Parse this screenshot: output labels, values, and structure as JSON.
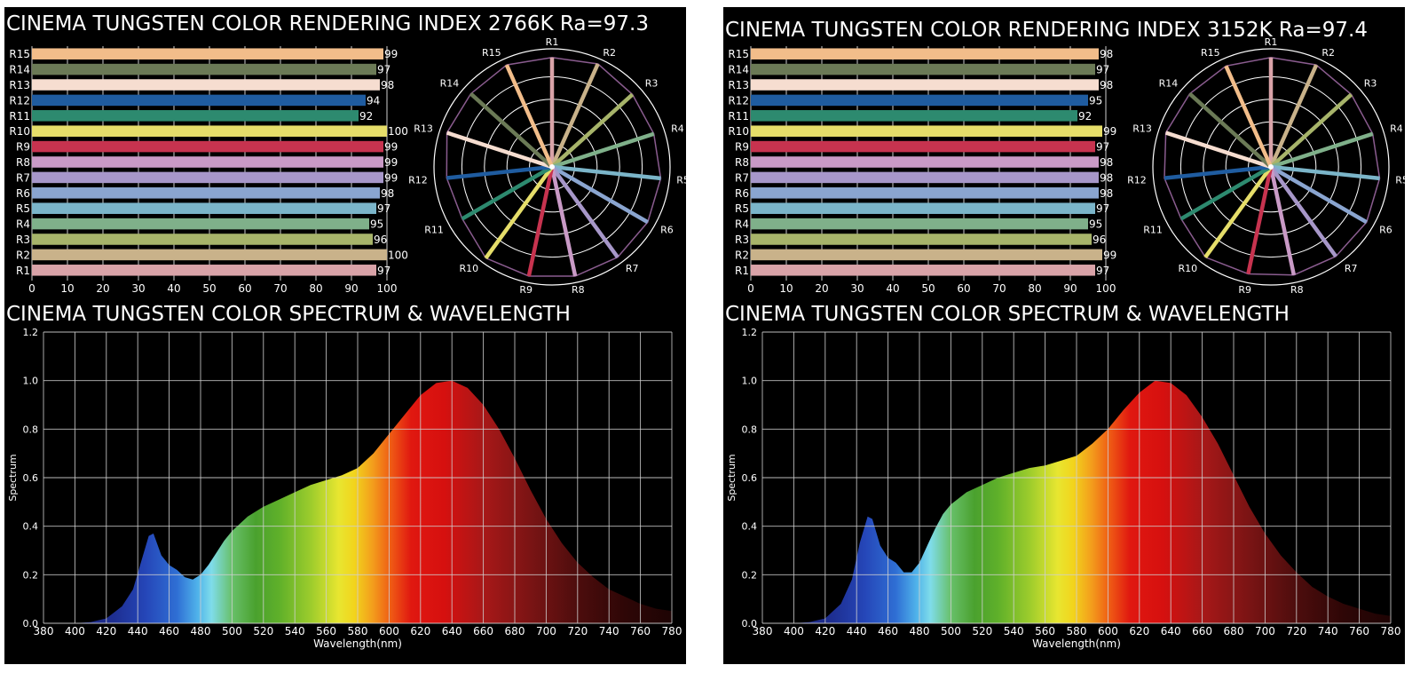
{
  "charts": [
    {
      "cri_title": "CINEMA TUNGSTEN COLOR RENDERING INDEX 2766K Ra=97.3",
      "spectrum_title": "CINEMA TUNGSTEN COLOR SPECTRUM & WAVELENGTH",
      "cct": "2766K",
      "ra": 97.3
    },
    {
      "cri_title": "CINEMA TUNGSTEN COLOR RENDERING INDEX 3152K  Ra=97.4",
      "spectrum_title": "CINEMA TUNGSTEN COLOR SPECTRUM & WAVELENGTH",
      "cct": "3152K",
      "ra": 97.4
    }
  ],
  "chart_data": [
    {
      "type": "bar",
      "orientation": "horizontal",
      "title": "CINEMA TUNGSTEN COLOR RENDERING INDEX 2766K Ra=97.3",
      "categories": [
        "R1",
        "R2",
        "R3",
        "R4",
        "R5",
        "R6",
        "R7",
        "R8",
        "R9",
        "R10",
        "R11",
        "R12",
        "R13",
        "R14",
        "R15"
      ],
      "values": [
        97,
        100,
        96,
        95,
        97,
        98,
        99,
        99,
        99,
        100,
        92,
        94,
        98,
        97,
        99
      ],
      "xlim": [
        0,
        100
      ],
      "xticks": [
        0,
        10,
        20,
        30,
        40,
        50,
        60,
        70,
        80,
        90,
        100
      ],
      "grid": true
    },
    {
      "type": "radar",
      "categories": [
        "R1",
        "R2",
        "R3",
        "R4",
        "R5",
        "R6",
        "R7",
        "R8",
        "R9",
        "R10",
        "R11",
        "R12",
        "R13",
        "R14",
        "R15"
      ],
      "values": [
        97,
        100,
        96,
        95,
        97,
        98,
        99,
        99,
        99,
        100,
        92,
        94,
        98,
        97,
        99
      ],
      "range": [
        0,
        100
      ]
    },
    {
      "type": "area",
      "title": "CINEMA TUNGSTEN COLOR SPECTRUM & WAVELENGTH",
      "xlabel": "Wavelength(nm)",
      "ylabel": "Spectrum",
      "xlim": [
        380,
        780
      ],
      "ylim": [
        0,
        1.2
      ],
      "xticks": [
        380,
        400,
        420,
        440,
        460,
        480,
        500,
        520,
        540,
        560,
        580,
        600,
        620,
        640,
        660,
        680,
        700,
        720,
        740,
        760,
        780
      ],
      "yticks": [
        "0.0",
        "0.2",
        "0.4",
        "0.6",
        "0.8",
        "1.0",
        "1.2"
      ],
      "x": [
        380,
        400,
        410,
        420,
        430,
        437,
        442,
        447,
        450,
        455,
        460,
        465,
        470,
        475,
        480,
        485,
        490,
        495,
        500,
        510,
        520,
        530,
        540,
        550,
        560,
        570,
        580,
        590,
        600,
        610,
        620,
        630,
        640,
        650,
        660,
        670,
        680,
        690,
        700,
        710,
        720,
        730,
        740,
        750,
        760,
        770,
        780
      ],
      "values": [
        0.0,
        0.0,
        0.005,
        0.02,
        0.07,
        0.14,
        0.25,
        0.36,
        0.37,
        0.28,
        0.24,
        0.22,
        0.19,
        0.18,
        0.2,
        0.24,
        0.29,
        0.34,
        0.38,
        0.44,
        0.48,
        0.51,
        0.54,
        0.57,
        0.59,
        0.61,
        0.64,
        0.7,
        0.78,
        0.86,
        0.94,
        0.99,
        1.0,
        0.97,
        0.9,
        0.8,
        0.68,
        0.55,
        0.43,
        0.33,
        0.25,
        0.19,
        0.14,
        0.11,
        0.08,
        0.06,
        0.05
      ],
      "grid": true
    },
    {
      "type": "bar",
      "orientation": "horizontal",
      "title": "CINEMA TUNGSTEN COLOR RENDERING INDEX 3152K  Ra=97.4",
      "categories": [
        "R1",
        "R2",
        "R3",
        "R4",
        "R5",
        "R6",
        "R7",
        "R8",
        "R9",
        "R10",
        "R11",
        "R12",
        "R13",
        "R14",
        "R15"
      ],
      "values": [
        97,
        99,
        96,
        95,
        97,
        98,
        98,
        98,
        97,
        99,
        92,
        95,
        98,
        97,
        98
      ],
      "xlim": [
        0,
        100
      ],
      "xticks": [
        0,
        10,
        20,
        30,
        40,
        50,
        60,
        70,
        80,
        90,
        100
      ],
      "grid": true
    },
    {
      "type": "radar",
      "categories": [
        "R1",
        "R2",
        "R3",
        "R4",
        "R5",
        "R6",
        "R7",
        "R8",
        "R9",
        "R10",
        "R11",
        "R12",
        "R13",
        "R14",
        "R15"
      ],
      "values": [
        97,
        99,
        96,
        95,
        97,
        98,
        98,
        98,
        97,
        99,
        92,
        95,
        98,
        97,
        98
      ],
      "range": [
        0,
        100
      ]
    },
    {
      "type": "area",
      "title": "CINEMA TUNGSTEN COLOR SPECTRUM & WAVELENGTH",
      "xlabel": "Wavelength(nm)",
      "ylabel": "Spectrum",
      "xlim": [
        380,
        780
      ],
      "ylim": [
        0,
        1.2
      ],
      "xticks": [
        380,
        400,
        420,
        440,
        460,
        480,
        500,
        520,
        540,
        560,
        580,
        600,
        620,
        640,
        660,
        680,
        700,
        720,
        740,
        760,
        780
      ],
      "yticks": [
        "0.0",
        "0.2",
        "0.4",
        "0.6",
        "0.8",
        "1.0",
        "1.2"
      ],
      "x": [
        380,
        400,
        410,
        420,
        430,
        437,
        442,
        447,
        450,
        455,
        460,
        465,
        470,
        475,
        480,
        485,
        490,
        495,
        500,
        510,
        520,
        530,
        540,
        550,
        560,
        570,
        580,
        590,
        600,
        610,
        620,
        630,
        640,
        650,
        660,
        670,
        680,
        690,
        700,
        710,
        720,
        730,
        740,
        750,
        760,
        770,
        780
      ],
      "values": [
        0.0,
        0.0,
        0.005,
        0.02,
        0.08,
        0.18,
        0.33,
        0.44,
        0.43,
        0.32,
        0.27,
        0.25,
        0.21,
        0.21,
        0.25,
        0.32,
        0.39,
        0.45,
        0.49,
        0.54,
        0.57,
        0.6,
        0.62,
        0.64,
        0.65,
        0.67,
        0.69,
        0.74,
        0.8,
        0.88,
        0.95,
        1.0,
        0.99,
        0.94,
        0.85,
        0.74,
        0.61,
        0.48,
        0.37,
        0.28,
        0.21,
        0.15,
        0.11,
        0.08,
        0.06,
        0.04,
        0.03
      ],
      "grid": true
    }
  ],
  "colors": {
    "panel_bg": "#000000",
    "grid": "#cfcfcf",
    "text": "#ffffff",
    "radar_outline": "#8a5c8f",
    "r_colors": [
      "#d9a3a8",
      "#c9b28a",
      "#a7b46a",
      "#7fb08a",
      "#7bb5c9",
      "#8aa5d0",
      "#a797c9",
      "#c99ac6",
      "#c7334f",
      "#e6de6a",
      "#2d8a6f",
      "#1f5ca0",
      "#f6ddd0",
      "#6b7a56",
      "#f2bd8a"
    ]
  }
}
